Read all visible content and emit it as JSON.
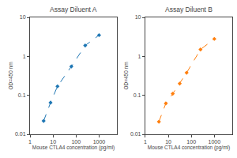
{
  "chart_data": [
    {
      "type": "line",
      "title": "Assay Diluent A",
      "x_label": "Mouse CTLA4 concentration (pg/ml)",
      "y_label": "OD=450 nm",
      "x": [
        3.9,
        7.8,
        15.6,
        62.5,
        250,
        1000
      ],
      "series": [
        {
          "values": [
            0.022,
            0.065,
            0.17,
            0.55,
            1.9,
            3.5
          ],
          "line_style": "dashed",
          "marker": "diamond"
        }
      ],
      "xlim": [
        1,
        6000
      ],
      "ylim": [
        0.01,
        10
      ],
      "xticks": [
        1,
        10,
        100,
        1000
      ],
      "yticks": [
        0.01,
        0.1,
        1,
        10
      ],
      "log": true,
      "grid": false
    },
    {
      "type": "line",
      "title": "Assay Diluent B",
      "x_label": "Mouse CTLA4 concentration (pg/ml)",
      "y_label": "OD=450 nm",
      "x": [
        3.9,
        7.8,
        15.6,
        31.25,
        62.5,
        250,
        1000
      ],
      "series": [
        {
          "values": [
            0.021,
            0.062,
            0.11,
            0.2,
            0.38,
            1.5,
            2.8
          ],
          "line_style": "dashed",
          "marker": "diamond"
        }
      ],
      "xlim": [
        1,
        6000
      ],
      "ylim": [
        0.01,
        10
      ],
      "xticks": [
        1,
        10,
        100,
        1000
      ],
      "yticks": [
        0.01,
        0.1,
        1,
        10
      ],
      "log": true,
      "grid": false
    }
  ]
}
